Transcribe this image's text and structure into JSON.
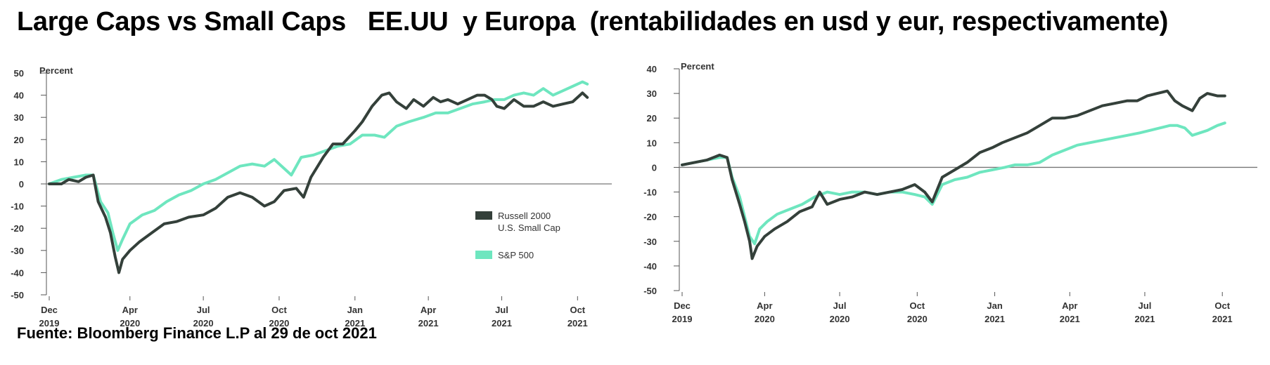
{
  "page": {
    "title": "Large Caps vs Small Caps   EE.UU  y Europa  (rentabilidades en usd y eur, respectivamente)",
    "source": "Fuente: Bloomberg Finance L.P al 29 de oct 2021"
  },
  "colors": {
    "dark": "#34403a",
    "light": "#6ee6bf",
    "zero_line": "#777777"
  },
  "chart_data": [
    {
      "type": "line",
      "unit_label": "Percent",
      "ylim": [
        -50,
        50
      ],
      "y_ticks": [
        50,
        40,
        30,
        20,
        10,
        0,
        -10,
        -20,
        -30,
        -40,
        -50
      ],
      "xlim": [
        0,
        23
      ],
      "x_ticks": [
        {
          "x": 0,
          "month": "Dec",
          "year": "2019"
        },
        {
          "x": 3.3,
          "month": "Apr",
          "year": "2020"
        },
        {
          "x": 6.3,
          "month": "Jul",
          "year": "2020"
        },
        {
          "x": 9.4,
          "month": "Oct",
          "year": "2020"
        },
        {
          "x": 12.5,
          "month": "Jan",
          "year": "2021"
        },
        {
          "x": 15.5,
          "month": "Apr",
          "year": "2021"
        },
        {
          "x": 18.5,
          "month": "Jul",
          "year": "2021"
        },
        {
          "x": 21.6,
          "month": "Oct",
          "year": "2021"
        }
      ],
      "legend": [
        "Russell 2000\nU.S. Small Cap",
        "S&P 500"
      ],
      "series": [
        {
          "name": "Russell 2000 U.S. Small Cap",
          "color": "dark",
          "points": [
            [
              0,
              0
            ],
            [
              0.5,
              0
            ],
            [
              0.8,
              2
            ],
            [
              1.2,
              1
            ],
            [
              1.5,
              3
            ],
            [
              1.8,
              4
            ],
            [
              2.0,
              -8
            ],
            [
              2.3,
              -15
            ],
            [
              2.5,
              -22
            ],
            [
              2.7,
              -33
            ],
            [
              2.85,
              -40
            ],
            [
              3.0,
              -34
            ],
            [
              3.3,
              -30
            ],
            [
              3.7,
              -26
            ],
            [
              4.2,
              -22
            ],
            [
              4.7,
              -18
            ],
            [
              5.2,
              -17
            ],
            [
              5.7,
              -15
            ],
            [
              6.3,
              -14
            ],
            [
              6.8,
              -11
            ],
            [
              7.3,
              -6
            ],
            [
              7.8,
              -4
            ],
            [
              8.3,
              -6
            ],
            [
              8.8,
              -10
            ],
            [
              9.2,
              -8
            ],
            [
              9.6,
              -3
            ],
            [
              10.1,
              -2
            ],
            [
              10.4,
              -6
            ],
            [
              10.7,
              3
            ],
            [
              11.2,
              12
            ],
            [
              11.6,
              18
            ],
            [
              12.0,
              18
            ],
            [
              12.5,
              24
            ],
            [
              12.8,
              28
            ],
            [
              13.2,
              35
            ],
            [
              13.6,
              40
            ],
            [
              13.9,
              41
            ],
            [
              14.2,
              37
            ],
            [
              14.6,
              34
            ],
            [
              14.9,
              38
            ],
            [
              15.3,
              35
            ],
            [
              15.7,
              39
            ],
            [
              16.0,
              37
            ],
            [
              16.3,
              38
            ],
            [
              16.7,
              36
            ],
            [
              17.1,
              38
            ],
            [
              17.5,
              40
            ],
            [
              17.8,
              40
            ],
            [
              18.1,
              38
            ],
            [
              18.3,
              35
            ],
            [
              18.6,
              34
            ],
            [
              19.0,
              38
            ],
            [
              19.4,
              35
            ],
            [
              19.8,
              35
            ],
            [
              20.2,
              37
            ],
            [
              20.6,
              35
            ],
            [
              21.0,
              36
            ],
            [
              21.4,
              37
            ],
            [
              21.8,
              41
            ],
            [
              22.0,
              39
            ]
          ]
        },
        {
          "name": "S&P 500",
          "color": "light",
          "points": [
            [
              0,
              0
            ],
            [
              0.5,
              2
            ],
            [
              1.0,
              3
            ],
            [
              1.5,
              4
            ],
            [
              1.8,
              4
            ],
            [
              2.1,
              -8
            ],
            [
              2.4,
              -13
            ],
            [
              2.6,
              -22
            ],
            [
              2.8,
              -30
            ],
            [
              3.0,
              -25
            ],
            [
              3.3,
              -18
            ],
            [
              3.8,
              -14
            ],
            [
              4.3,
              -12
            ],
            [
              4.8,
              -8
            ],
            [
              5.3,
              -5
            ],
            [
              5.8,
              -3
            ],
            [
              6.3,
              0
            ],
            [
              6.8,
              2
            ],
            [
              7.3,
              5
            ],
            [
              7.8,
              8
            ],
            [
              8.3,
              9
            ],
            [
              8.8,
              8
            ],
            [
              9.2,
              11
            ],
            [
              9.6,
              7
            ],
            [
              9.9,
              4
            ],
            [
              10.3,
              12
            ],
            [
              10.8,
              13
            ],
            [
              11.3,
              15
            ],
            [
              11.8,
              17
            ],
            [
              12.3,
              18
            ],
            [
              12.8,
              22
            ],
            [
              13.3,
              22
            ],
            [
              13.7,
              21
            ],
            [
              14.2,
              26
            ],
            [
              14.7,
              28
            ],
            [
              15.3,
              30
            ],
            [
              15.8,
              32
            ],
            [
              16.3,
              32
            ],
            [
              16.8,
              34
            ],
            [
              17.3,
              36
            ],
            [
              17.8,
              37
            ],
            [
              18.2,
              38
            ],
            [
              18.6,
              38
            ],
            [
              19.0,
              40
            ],
            [
              19.4,
              41
            ],
            [
              19.8,
              40
            ],
            [
              20.2,
              43
            ],
            [
              20.6,
              40
            ],
            [
              21.0,
              42
            ],
            [
              21.4,
              44
            ],
            [
              21.8,
              46
            ],
            [
              22.0,
              45
            ]
          ]
        }
      ]
    },
    {
      "type": "line",
      "unit_label": "Percent",
      "ylim": [
        -50,
        40
      ],
      "y_ticks": [
        40,
        30,
        20,
        10,
        0,
        -10,
        -20,
        -30,
        -40,
        -50
      ],
      "xlim": [
        0,
        23
      ],
      "x_ticks": [
        {
          "x": 0,
          "month": "Dec",
          "year": "2019"
        },
        {
          "x": 3.3,
          "month": "Apr",
          "year": "2020"
        },
        {
          "x": 6.3,
          "month": "Jul",
          "year": "2020"
        },
        {
          "x": 9.4,
          "month": "Oct",
          "year": "2020"
        },
        {
          "x": 12.5,
          "month": "Jan",
          "year": "2021"
        },
        {
          "x": 15.5,
          "month": "Apr",
          "year": "2021"
        },
        {
          "x": 18.5,
          "month": "Jul",
          "year": "2021"
        },
        {
          "x": 21.6,
          "month": "Oct",
          "year": "2021"
        }
      ],
      "legend": [],
      "series": [
        {
          "name": "",
          "color": "dark",
          "points": [
            [
              0,
              1
            ],
            [
              0.5,
              2
            ],
            [
              1.0,
              3
            ],
            [
              1.5,
              5
            ],
            [
              1.8,
              4
            ],
            [
              2.0,
              -5
            ],
            [
              2.3,
              -15
            ],
            [
              2.5,
              -22
            ],
            [
              2.7,
              -30
            ],
            [
              2.8,
              -37
            ],
            [
              3.0,
              -32
            ],
            [
              3.3,
              -28
            ],
            [
              3.7,
              -25
            ],
            [
              4.2,
              -22
            ],
            [
              4.7,
              -18
            ],
            [
              5.2,
              -16
            ],
            [
              5.5,
              -10
            ],
            [
              5.8,
              -15
            ],
            [
              6.3,
              -13
            ],
            [
              6.8,
              -12
            ],
            [
              7.3,
              -10
            ],
            [
              7.8,
              -11
            ],
            [
              8.3,
              -10
            ],
            [
              8.8,
              -9
            ],
            [
              9.3,
              -7
            ],
            [
              9.7,
              -10
            ],
            [
              10.0,
              -14
            ],
            [
              10.4,
              -4
            ],
            [
              10.9,
              -1
            ],
            [
              11.4,
              2
            ],
            [
              11.9,
              6
            ],
            [
              12.4,
              8
            ],
            [
              12.8,
              10
            ],
            [
              13.3,
              12
            ],
            [
              13.8,
              14
            ],
            [
              14.3,
              17
            ],
            [
              14.8,
              20
            ],
            [
              15.3,
              20
            ],
            [
              15.8,
              21
            ],
            [
              16.3,
              23
            ],
            [
              16.8,
              25
            ],
            [
              17.3,
              26
            ],
            [
              17.8,
              27
            ],
            [
              18.2,
              27
            ],
            [
              18.6,
              29
            ],
            [
              19.0,
              30
            ],
            [
              19.4,
              31
            ],
            [
              19.7,
              27
            ],
            [
              20.0,
              25
            ],
            [
              20.4,
              23
            ],
            [
              20.7,
              28
            ],
            [
              21.0,
              30
            ],
            [
              21.4,
              29
            ],
            [
              21.7,
              29
            ]
          ]
        },
        {
          "name": "",
          "color": "light",
          "points": [
            [
              0,
              1
            ],
            [
              0.5,
              2
            ],
            [
              1.0,
              3
            ],
            [
              1.5,
              4
            ],
            [
              1.8,
              4
            ],
            [
              2.0,
              -4
            ],
            [
              2.3,
              -12
            ],
            [
              2.5,
              -20
            ],
            [
              2.7,
              -28
            ],
            [
              2.9,
              -31
            ],
            [
              3.1,
              -25
            ],
            [
              3.4,
              -22
            ],
            [
              3.8,
              -19
            ],
            [
              4.3,
              -17
            ],
            [
              4.8,
              -15
            ],
            [
              5.3,
              -12
            ],
            [
              5.8,
              -10
            ],
            [
              6.3,
              -11
            ],
            [
              6.8,
              -10
            ],
            [
              7.3,
              -10
            ],
            [
              7.8,
              -11
            ],
            [
              8.3,
              -10
            ],
            [
              8.8,
              -10
            ],
            [
              9.3,
              -11
            ],
            [
              9.7,
              -12
            ],
            [
              10.0,
              -15
            ],
            [
              10.4,
              -7
            ],
            [
              10.9,
              -5
            ],
            [
              11.4,
              -4
            ],
            [
              11.9,
              -2
            ],
            [
              12.4,
              -1
            ],
            [
              12.9,
              0
            ],
            [
              13.3,
              1
            ],
            [
              13.8,
              1
            ],
            [
              14.3,
              2
            ],
            [
              14.8,
              5
            ],
            [
              15.3,
              7
            ],
            [
              15.8,
              9
            ],
            [
              16.3,
              10
            ],
            [
              16.8,
              11
            ],
            [
              17.3,
              12
            ],
            [
              17.8,
              13
            ],
            [
              18.3,
              14
            ],
            [
              18.7,
              15
            ],
            [
              19.1,
              16
            ],
            [
              19.5,
              17
            ],
            [
              19.8,
              17
            ],
            [
              20.1,
              16
            ],
            [
              20.4,
              13
            ],
            [
              20.7,
              14
            ],
            [
              21.0,
              15
            ],
            [
              21.4,
              17
            ],
            [
              21.7,
              18
            ]
          ]
        }
      ]
    }
  ]
}
